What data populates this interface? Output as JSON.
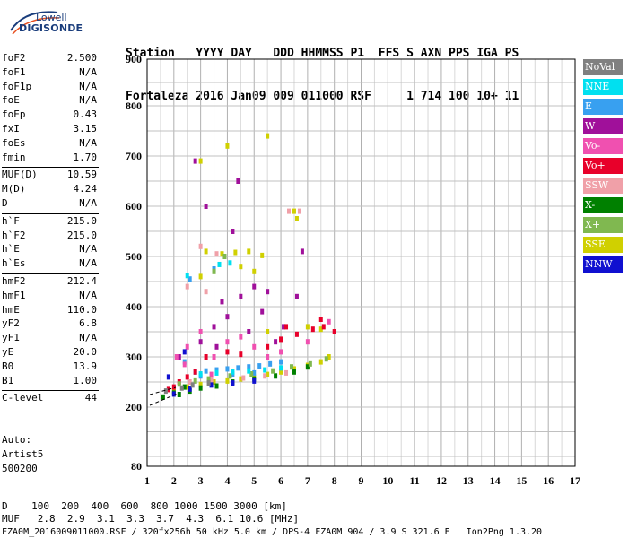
{
  "logo": {
    "line1": "Lowell",
    "line2": "DIGISONDE"
  },
  "header": {
    "line1": "Station   YYYY DAY   DDD HHMMSS P1  FFS S AXN PPS IGA PS",
    "line2": "Fortaleza 2016 Jan09 009 011000 RSF     1 714 100 10+ 11"
  },
  "params": {
    "group1": [
      {
        "k": "foF2",
        "v": "2.500"
      },
      {
        "k": "foF1",
        "v": "N/A"
      },
      {
        "k": "foF1p",
        "v": "N/A"
      },
      {
        "k": "foE",
        "v": "N/A"
      },
      {
        "k": "foEp",
        "v": "0.43"
      },
      {
        "k": "fxI",
        "v": "3.15"
      },
      {
        "k": "foEs",
        "v": "N/A"
      },
      {
        "k": "fmin",
        "v": "1.70"
      }
    ],
    "group2": [
      {
        "k": "MUF(D)",
        "v": "10.59"
      },
      {
        "k": "M(D)",
        "v": "4.24"
      },
      {
        "k": "D",
        "v": "N/A"
      }
    ],
    "group3": [
      {
        "k": "h`F",
        "v": "215.0"
      },
      {
        "k": "h`F2",
        "v": "215.0"
      },
      {
        "k": "h`E",
        "v": "N/A"
      },
      {
        "k": "h`Es",
        "v": "N/A"
      }
    ],
    "group4": [
      {
        "k": "hmF2",
        "v": "212.4"
      },
      {
        "k": "hmF1",
        "v": "N/A"
      },
      {
        "k": "hmE",
        "v": "110.0"
      },
      {
        "k": "yF2",
        "v": "6.8"
      },
      {
        "k": "yF1",
        "v": "N/A"
      },
      {
        "k": "yE",
        "v": "20.0"
      },
      {
        "k": "B0",
        "v": "13.9"
      },
      {
        "k": "B1",
        "v": "1.00"
      }
    ],
    "group5": [
      {
        "k": "C-level",
        "v": "44"
      }
    ]
  },
  "auto": {
    "line1": "Auto:",
    "line2": "Artist5",
    "line3": "500200"
  },
  "legend": [
    {
      "label": "NoVal",
      "color": "#808080"
    },
    {
      "label": "NNE",
      "color": "#00e0f0"
    },
    {
      "label": "E",
      "color": "#38a0f0"
    },
    {
      "label": "W",
      "color": "#a0109a"
    },
    {
      "label": "Vo-",
      "color": "#f050b0"
    },
    {
      "label": "Vo+",
      "color": "#e8002a"
    },
    {
      "label": "SSW",
      "color": "#f0a0a8"
    },
    {
      "label": "X-",
      "color": "#008000"
    },
    {
      "label": "X+",
      "color": "#80b850"
    },
    {
      "label": "SSE",
      "color": "#d0d000"
    },
    {
      "label": "NNW",
      "color": "#1010d0"
    }
  ],
  "footer": {
    "line1": "D    100  200  400  600  800 1000 1500 3000 [km]",
    "line2": "MUF   2.8  2.9  3.1  3.3  3.7  4.3  6.1 10.6 [MHz]",
    "line3": "FZA0M_2016009011000.RSF / 320fx256h 50 kHz 5.0 km / DPS-4 FZA0M 904 / 3.9 S 321.6 E   Ion2Png 1.3.20"
  },
  "chart_data": {
    "type": "scatter",
    "title": "",
    "xlabel": "",
    "ylabel": "",
    "xlim": [
      1,
      17
    ],
    "ylim": [
      80,
      900
    ],
    "xticks": [
      "1",
      "2",
      "3",
      "4",
      "5",
      "6",
      "7",
      "8",
      "9",
      "10",
      "11",
      "12",
      "13",
      "14",
      "15",
      "16",
      "17"
    ],
    "yticks": [
      "80",
      "200",
      "300",
      "400",
      "500",
      "600",
      "700",
      "800",
      "900"
    ],
    "grid": true,
    "legend_position": "right",
    "series": [
      {
        "name": "SSE",
        "color": "#d0d000",
        "points": [
          [
            2.0,
            232
          ],
          [
            2.5,
            240
          ],
          [
            3.0,
            245
          ],
          [
            3.5,
            250
          ],
          [
            4.0,
            252
          ],
          [
            4.5,
            256
          ],
          [
            5.0,
            260
          ],
          [
            5.5,
            265
          ],
          [
            6.0,
            270
          ],
          [
            6.5,
            276
          ],
          [
            7.0,
            283
          ],
          [
            7.5,
            290
          ],
          [
            7.8,
            300
          ],
          [
            3.2,
            510
          ],
          [
            3.8,
            505
          ],
          [
            4.3,
            508
          ],
          [
            4.8,
            510
          ],
          [
            5.3,
            502
          ],
          [
            4.5,
            480
          ],
          [
            5.0,
            470
          ],
          [
            3.0,
            460
          ],
          [
            6.5,
            590
          ],
          [
            6.6,
            575
          ],
          [
            7.0,
            360
          ],
          [
            7.5,
            355
          ],
          [
            5.5,
            350
          ],
          [
            3.0,
            690
          ],
          [
            4.0,
            720
          ],
          [
            5.5,
            740
          ]
        ]
      },
      {
        "name": "E",
        "color": "#38a0f0",
        "points": [
          [
            2.8,
            270
          ],
          [
            3.2,
            272
          ],
          [
            3.6,
            274
          ],
          [
            4.0,
            276
          ],
          [
            4.4,
            278
          ],
          [
            4.8,
            280
          ],
          [
            5.2,
            282
          ],
          [
            5.6,
            286
          ],
          [
            6.0,
            290
          ],
          [
            3.0,
            262
          ],
          [
            4.2,
            266
          ],
          [
            5.0,
            268
          ],
          [
            2.4,
            290
          ],
          [
            2.6,
            455
          ],
          [
            3.5,
            475
          ]
        ]
      },
      {
        "name": "W",
        "color": "#a0109a",
        "points": [
          [
            3.0,
            330
          ],
          [
            3.5,
            360
          ],
          [
            3.8,
            410
          ],
          [
            4.0,
            380
          ],
          [
            4.5,
            420
          ],
          [
            4.8,
            350
          ],
          [
            5.0,
            440
          ],
          [
            5.3,
            390
          ],
          [
            5.8,
            330
          ],
          [
            6.1,
            360
          ],
          [
            6.6,
            420
          ],
          [
            2.8,
            690
          ],
          [
            3.2,
            600
          ],
          [
            4.4,
            650
          ],
          [
            6.8,
            510
          ],
          [
            2.2,
            300
          ],
          [
            3.6,
            320
          ],
          [
            4.2,
            550
          ],
          [
            5.5,
            430
          ]
        ]
      },
      {
        "name": "Vo+",
        "color": "#e8002a",
        "points": [
          [
            1.8,
            235
          ],
          [
            2.0,
            240
          ],
          [
            2.2,
            250
          ],
          [
            2.5,
            260
          ],
          [
            2.8,
            270
          ],
          [
            3.2,
            300
          ],
          [
            4.0,
            310
          ],
          [
            4.5,
            305
          ],
          [
            5.5,
            320
          ],
          [
            6.0,
            335
          ],
          [
            6.6,
            345
          ],
          [
            7.2,
            355
          ],
          [
            7.6,
            360
          ],
          [
            8.0,
            350
          ],
          [
            6.2,
            360
          ],
          [
            7.5,
            375
          ]
        ]
      },
      {
        "name": "Vo-",
        "color": "#f050b0",
        "points": [
          [
            2.1,
            300
          ],
          [
            2.5,
            320
          ],
          [
            3.0,
            350
          ],
          [
            3.5,
            300
          ],
          [
            4.0,
            330
          ],
          [
            4.5,
            340
          ],
          [
            5.0,
            320
          ],
          [
            5.5,
            300
          ],
          [
            6.0,
            310
          ],
          [
            7.0,
            330
          ],
          [
            7.8,
            370
          ],
          [
            2.4,
            285
          ],
          [
            3.4,
            265
          ]
        ]
      },
      {
        "name": "SSW",
        "color": "#f0a0a8",
        "points": [
          [
            2.6,
            250
          ],
          [
            3.4,
            255
          ],
          [
            4.6,
            258
          ],
          [
            5.4,
            262
          ],
          [
            6.2,
            268
          ],
          [
            2.5,
            440
          ],
          [
            3.2,
            430
          ],
          [
            6.3,
            590
          ],
          [
            6.7,
            590
          ],
          [
            3.0,
            520
          ],
          [
            3.6,
            505
          ]
        ]
      },
      {
        "name": "X-",
        "color": "#008000",
        "points": [
          [
            1.6,
            220
          ],
          [
            2.0,
            228
          ],
          [
            2.2,
            225
          ],
          [
            2.4,
            240
          ],
          [
            2.6,
            232
          ],
          [
            3.0,
            238
          ],
          [
            3.6,
            242
          ],
          [
            4.2,
            250
          ],
          [
            5.0,
            256
          ],
          [
            5.8,
            262
          ],
          [
            6.5,
            270
          ],
          [
            7.0,
            280
          ]
        ]
      },
      {
        "name": "X+",
        "color": "#80b850",
        "points": [
          [
            2.2,
            246
          ],
          [
            2.8,
            252
          ],
          [
            3.3,
            256
          ],
          [
            4.1,
            262
          ],
          [
            4.9,
            266
          ],
          [
            5.7,
            272
          ],
          [
            6.4,
            280
          ],
          [
            7.1,
            286
          ],
          [
            7.7,
            296
          ],
          [
            3.5,
            470
          ],
          [
            3.9,
            500
          ]
        ]
      },
      {
        "name": "NNE",
        "color": "#00e0f0",
        "points": [
          [
            3.0,
            266
          ],
          [
            3.6,
            268
          ],
          [
            4.2,
            270
          ],
          [
            4.8,
            272
          ],
          [
            5.4,
            274
          ],
          [
            6.0,
            278
          ],
          [
            2.5,
            462
          ],
          [
            3.7,
            484
          ],
          [
            4.1,
            487
          ]
        ]
      },
      {
        "name": "NNW",
        "color": "#1010d0",
        "points": [
          [
            2.0,
            226
          ],
          [
            2.6,
            236
          ],
          [
            3.4,
            244
          ],
          [
            4.2,
            248
          ],
          [
            5.0,
            252
          ],
          [
            2.4,
            310
          ],
          [
            1.8,
            260
          ]
        ]
      },
      {
        "name": "NoVal",
        "color": "#808080",
        "points": [
          [
            1.7,
            232
          ],
          [
            2.3,
            238
          ],
          [
            2.7,
            244
          ],
          [
            3.3,
            248
          ]
        ]
      }
    ]
  }
}
